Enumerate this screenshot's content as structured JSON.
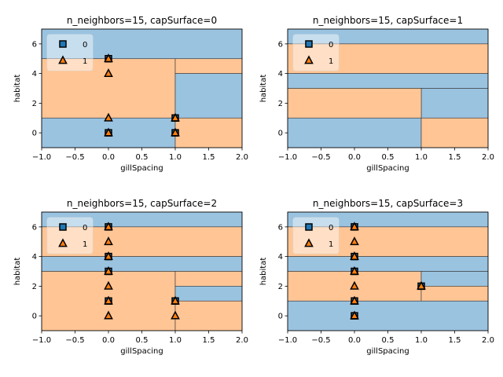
{
  "colors": {
    "class0": "#1f77b4",
    "class1": "#ff7f0e",
    "region0": "#9ac3e0",
    "region1": "#ffc595"
  },
  "chart_data": [
    {
      "type": "scatter",
      "title": "n_neighbors=15, capSurface=0",
      "xlabel": "gillSpacing",
      "ylabel": "habitat",
      "xlim": [
        -1.0,
        2.0
      ],
      "ylim": [
        -1.0,
        7.0
      ],
      "xticks": [
        "−1.0",
        "−0.5",
        "0.0",
        "0.5",
        "1.0",
        "1.5",
        "2.0"
      ],
      "yticks": [
        "0",
        "2",
        "4",
        "6"
      ],
      "legend": {
        "position": "top-left",
        "entries": [
          "0",
          "1"
        ]
      },
      "regions": [
        {
          "class": "0",
          "x": [
            -1.0,
            2.0
          ],
          "y": [
            5.0,
            7.0
          ]
        },
        {
          "class": "1",
          "x": [
            -1.0,
            1.0
          ],
          "y": [
            1.0,
            5.0
          ]
        },
        {
          "class": "1",
          "x": [
            1.0,
            2.0
          ],
          "y": [
            4.0,
            5.0
          ]
        },
        {
          "class": "0",
          "x": [
            1.0,
            2.0
          ],
          "y": [
            1.0,
            4.0
          ]
        },
        {
          "class": "0",
          "x": [
            -1.0,
            1.0
          ],
          "y": [
            -1.0,
            1.0
          ]
        },
        {
          "class": "1",
          "x": [
            1.0,
            2.0
          ],
          "y": [
            -1.0,
            1.0
          ]
        }
      ],
      "series": [
        {
          "name": "0",
          "points": [
            [
              0,
              5
            ],
            [
              0,
              0
            ],
            [
              1,
              1
            ],
            [
              1,
              0
            ]
          ]
        },
        {
          "name": "1",
          "points": [
            [
              0,
              5
            ],
            [
              0,
              4
            ],
            [
              0,
              1
            ],
            [
              0,
              0
            ],
            [
              1,
              1
            ],
            [
              1,
              0
            ]
          ]
        }
      ]
    },
    {
      "type": "scatter",
      "title": "n_neighbors=15, capSurface=1",
      "xlabel": "gillSpacing",
      "ylabel": "habitat",
      "xlim": [
        -1.0,
        2.0
      ],
      "ylim": [
        -1.0,
        7.0
      ],
      "xticks": [
        "−1.0",
        "−0.5",
        "0.0",
        "0.5",
        "1.0",
        "1.5",
        "2.0"
      ],
      "yticks": [
        "0",
        "2",
        "4",
        "6"
      ],
      "legend": {
        "position": "top-left",
        "entries": [
          "0",
          "1"
        ]
      },
      "regions": [
        {
          "class": "0",
          "x": [
            -1.0,
            2.0
          ],
          "y": [
            6.0,
            7.0
          ]
        },
        {
          "class": "1",
          "x": [
            -1.0,
            2.0
          ],
          "y": [
            4.0,
            6.0
          ]
        },
        {
          "class": "0",
          "x": [
            -1.0,
            2.0
          ],
          "y": [
            3.0,
            4.0
          ]
        },
        {
          "class": "0",
          "x": [
            1.0,
            2.0
          ],
          "y": [
            1.0,
            3.0
          ]
        },
        {
          "class": "1",
          "x": [
            -1.0,
            1.0
          ],
          "y": [
            1.0,
            3.0
          ]
        },
        {
          "class": "0",
          "x": [
            -1.0,
            1.0
          ],
          "y": [
            -1.0,
            1.0
          ]
        },
        {
          "class": "1",
          "x": [
            1.0,
            2.0
          ],
          "y": [
            -1.0,
            1.0
          ]
        }
      ],
      "series": [
        {
          "name": "0",
          "points": []
        },
        {
          "name": "1",
          "points": []
        }
      ]
    },
    {
      "type": "scatter",
      "title": "n_neighbors=15, capSurface=2",
      "xlabel": "gillSpacing",
      "ylabel": "habitat",
      "xlim": [
        -1.0,
        2.0
      ],
      "ylim": [
        -1.0,
        7.0
      ],
      "xticks": [
        "−1.0",
        "−0.5",
        "0.0",
        "0.5",
        "1.0",
        "1.5",
        "2.0"
      ],
      "yticks": [
        "0",
        "2",
        "4",
        "6"
      ],
      "legend": {
        "position": "top-left",
        "entries": [
          "0",
          "1"
        ]
      },
      "regions": [
        {
          "class": "0",
          "x": [
            -1.0,
            2.0
          ],
          "y": [
            6.0,
            7.0
          ]
        },
        {
          "class": "1",
          "x": [
            -1.0,
            2.0
          ],
          "y": [
            4.0,
            6.0
          ]
        },
        {
          "class": "0",
          "x": [
            -1.0,
            2.0
          ],
          "y": [
            3.0,
            4.0
          ]
        },
        {
          "class": "1",
          "x": [
            -1.0,
            1.0
          ],
          "y": [
            -1.0,
            3.0
          ]
        },
        {
          "class": "1",
          "x": [
            1.0,
            2.0
          ],
          "y": [
            2.0,
            3.0
          ]
        },
        {
          "class": "0",
          "x": [
            1.0,
            2.0
          ],
          "y": [
            1.0,
            2.0
          ]
        },
        {
          "class": "1",
          "x": [
            1.0,
            2.0
          ],
          "y": [
            -1.0,
            1.0
          ]
        }
      ],
      "series": [
        {
          "name": "0",
          "points": [
            [
              0,
              6
            ],
            [
              0,
              4
            ],
            [
              0,
              3
            ],
            [
              0,
              1
            ],
            [
              1,
              1
            ]
          ]
        },
        {
          "name": "1",
          "points": [
            [
              0,
              6
            ],
            [
              0,
              5
            ],
            [
              0,
              4
            ],
            [
              0,
              3
            ],
            [
              0,
              2
            ],
            [
              0,
              1
            ],
            [
              0,
              0
            ],
            [
              1,
              1
            ],
            [
              1,
              0
            ]
          ]
        }
      ]
    },
    {
      "type": "scatter",
      "title": "n_neighbors=15, capSurface=3",
      "xlabel": "gillSpacing",
      "ylabel": "habitat",
      "xlim": [
        -1.0,
        2.0
      ],
      "ylim": [
        -1.0,
        7.0
      ],
      "xticks": [
        "−1.0",
        "−0.5",
        "0.0",
        "0.5",
        "1.0",
        "1.5",
        "2.0"
      ],
      "yticks": [
        "0",
        "2",
        "4",
        "6"
      ],
      "legend": {
        "position": "top-left",
        "entries": [
          "0",
          "1"
        ]
      },
      "regions": [
        {
          "class": "0",
          "x": [
            -1.0,
            2.0
          ],
          "y": [
            6.0,
            7.0
          ]
        },
        {
          "class": "1",
          "x": [
            -1.0,
            2.0
          ],
          "y": [
            4.0,
            6.0
          ]
        },
        {
          "class": "0",
          "x": [
            -1.0,
            2.0
          ],
          "y": [
            3.0,
            4.0
          ]
        },
        {
          "class": "1",
          "x": [
            -1.0,
            1.0
          ],
          "y": [
            1.0,
            3.0
          ]
        },
        {
          "class": "0",
          "x": [
            1.0,
            2.0
          ],
          "y": [
            2.0,
            3.0
          ]
        },
        {
          "class": "1",
          "x": [
            1.0,
            2.0
          ],
          "y": [
            1.0,
            2.0
          ]
        },
        {
          "class": "0",
          "x": [
            -1.0,
            2.0
          ],
          "y": [
            -1.0,
            1.0
          ]
        }
      ],
      "series": [
        {
          "name": "0",
          "points": [
            [
              0,
              6
            ],
            [
              0,
              4
            ],
            [
              0,
              3
            ],
            [
              0,
              1
            ],
            [
              0,
              0
            ],
            [
              1,
              2
            ]
          ]
        },
        {
          "name": "1",
          "points": [
            [
              0,
              6
            ],
            [
              0,
              5
            ],
            [
              0,
              4
            ],
            [
              0,
              3
            ],
            [
              0,
              2
            ],
            [
              0,
              1
            ],
            [
              0,
              0
            ],
            [
              1,
              2
            ]
          ]
        }
      ]
    }
  ]
}
